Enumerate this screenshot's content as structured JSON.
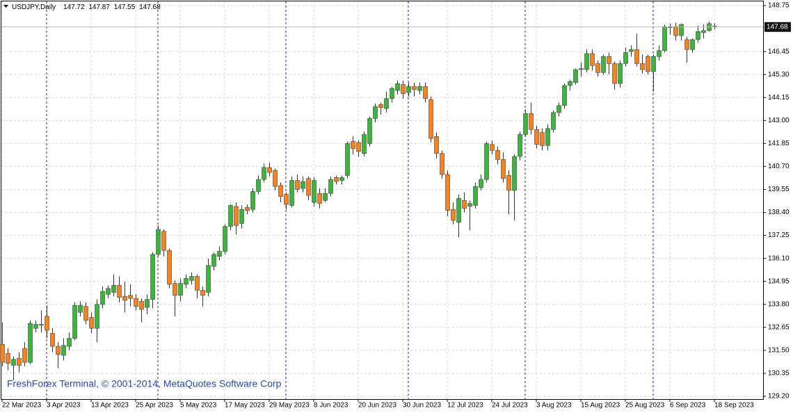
{
  "chart_data": {
    "type": "candlestick",
    "title": "USDJPY,Daily",
    "watermark": "FreshForex Terminal, © 2001-2014, MetaQuotes Software Corp",
    "up_color": "#3cb43c",
    "down_color": "#f5821f",
    "grid": true,
    "ylim": [
      129.06,
      148.96
    ],
    "yticks": [
      148.75,
      {
        "value": 146.45,
        "label": "146.45"
      },
      {
        "value": 145.3,
        "label": "145.30"
      },
      144.15,
      {
        "value": 143,
        "label": "143.00"
      },
      141.85,
      {
        "value": 140.7,
        "label": "140.70"
      },
      139.55,
      {
        "value": 138.4,
        "label": "138.40"
      },
      137.25,
      {
        "value": 136.1,
        "label": "136.10"
      },
      134.95,
      {
        "value": 133.8,
        "label": "133.80"
      },
      132.65,
      {
        "value": 131.5,
        "label": "131.50"
      },
      130.35,
      {
        "value": 129.2,
        "label": "129.20"
      }
    ],
    "categories": [
      "22 Mar 2023",
      null,
      null,
      null,
      null,
      null,
      null,
      null,
      "3 Apr 2023",
      null,
      null,
      null,
      null,
      null,
      null,
      null,
      "13 Apr 2023",
      null,
      null,
      null,
      null,
      null,
      null,
      null,
      "25 Apr 2023",
      null,
      null,
      null,
      null,
      null,
      null,
      null,
      "5 May 2023",
      null,
      null,
      null,
      null,
      null,
      null,
      null,
      "17 May 2023",
      null,
      null,
      null,
      null,
      null,
      null,
      null,
      "29 May 2023",
      null,
      null,
      null,
      null,
      null,
      null,
      null,
      "8 Jun 2023",
      null,
      null,
      null,
      null,
      null,
      null,
      null,
      "20 Jun 2023",
      null,
      null,
      null,
      null,
      null,
      null,
      null,
      "30 Jun 2023",
      null,
      null,
      null,
      null,
      null,
      null,
      null,
      "12 Jul 2023",
      null,
      null,
      null,
      null,
      null,
      null,
      null,
      "24 Jul 2023",
      null,
      null,
      null,
      null,
      null,
      null,
      null,
      "3 Aug 2023",
      null,
      null,
      null,
      null,
      null,
      null,
      null,
      "15 Aug 2023",
      null,
      null,
      null,
      null,
      null,
      null,
      null,
      "25 Aug 2023",
      null,
      null,
      null,
      null,
      null,
      null,
      null,
      "6 Sep 2023",
      null,
      null,
      null,
      null,
      null,
      null,
      null,
      "18 Sep 2023"
    ],
    "open": [
      131.8,
      131.35,
      130.75,
      131.1,
      131.6,
      130.9,
      132.6,
      132.75,
      133.2,
      132.35,
      131.7,
      131.25,
      131.7,
      132.1,
      133.4,
      133.7,
      133.15,
      132.6,
      133.8,
      134.3,
      134.4,
      134.75,
      134.2,
      134.25,
      134.1,
      133.95,
      133.65,
      134.05,
      136.3,
      137.45,
      136.5,
      134.85,
      134.25,
      134.8,
      135.0,
      135.2,
      134.5,
      134.4,
      135.7,
      136.2,
      136.45,
      137.7,
      138.7,
      137.85,
      138.65,
      138.55,
      139.45,
      140.05,
      140.65,
      140.5,
      139.75,
      139.3,
      138.75,
      140.0,
      139.6,
      140.1,
      138.9,
      139.35,
      139.0,
      139.35,
      140.15,
      140.0,
      140.25,
      141.95,
      141.9,
      141.35,
      141.85,
      143.1,
      143.8,
      143.6,
      144.1,
      144.5,
      144.8,
      144.4,
      144.7,
      144.5,
      144.7,
      144.05,
      142.2,
      141.35,
      140.3,
      138.55,
      137.9,
      139.0,
      138.7,
      138.75,
      139.65,
      140.05,
      141.8,
      141.5,
      141.05,
      140.25,
      139.5,
      141.2,
      142.3,
      143.35,
      142.55,
      142.4,
      141.75,
      142.55,
      143.4,
      143.75,
      144.75,
      144.9,
      145.55,
      145.55,
      146.35,
      145.85,
      145.4,
      146.2,
      145.85,
      144.85,
      145.85,
      146.45,
      146.55,
      145.85,
      146.2,
      145.45,
      146.2,
      146.5,
      147.7,
      147.7,
      147.25,
      147.05,
      146.55,
      147.05,
      147.4,
      147.5,
      147.72
    ],
    "high": [
      132.9,
      131.6,
      131.2,
      131.4,
      131.9,
      133.0,
      133.0,
      133.5,
      133.75,
      132.6,
      131.9,
      132.1,
      132.4,
      133.9,
      133.95,
      133.9,
      133.4,
      134.05,
      134.7,
      134.75,
      135.3,
      135.2,
      134.95,
      134.8,
      134.3,
      134.1,
      134.3,
      136.4,
      137.75,
      137.55,
      136.6,
      135.0,
      135.1,
      135.3,
      135.4,
      135.3,
      134.7,
      136.1,
      136.4,
      136.7,
      137.8,
      138.8,
      138.9,
      138.75,
      138.8,
      139.6,
      140.25,
      140.85,
      140.9,
      140.6,
      139.9,
      139.4,
      140.2,
      140.3,
      140.2,
      140.2,
      140.15,
      139.6,
      139.6,
      140.2,
      140.25,
      140.25,
      141.95,
      142.2,
      142.0,
      142.45,
      143.2,
      143.85,
      143.9,
      144.45,
      144.7,
      145.0,
      145.0,
      144.9,
      144.9,
      144.9,
      144.9,
      144.2,
      142.4,
      141.5,
      140.5,
      138.9,
      139.3,
      139.4,
      139.0,
      139.9,
      140.3,
      141.95,
      142.0,
      141.7,
      141.4,
      140.5,
      141.3,
      142.45,
      143.55,
      143.9,
      142.75,
      142.6,
      142.8,
      143.5,
      143.9,
      144.85,
      145.05,
      145.6,
      145.9,
      146.55,
      146.55,
      146.0,
      146.3,
      146.4,
      145.95,
      146.0,
      146.65,
      146.75,
      147.35,
      146.3,
      146.3,
      146.3,
      146.75,
      147.8,
      147.85,
      147.9,
      147.85,
      147.2,
      147.1,
      147.75,
      147.8,
      147.95,
      147.87
    ],
    "low": [
      130.7,
      130.5,
      130.0,
      130.4,
      130.7,
      130.8,
      132.4,
      132.4,
      132.1,
      131.4,
      130.6,
      131.0,
      131.5,
      132.0,
      133.2,
      132.8,
      132.35,
      131.9,
      133.6,
      134.1,
      134.2,
      133.9,
      133.4,
      133.7,
      133.5,
      132.9,
      133.3,
      133.6,
      136.2,
      136.2,
      134.6,
      133.2,
      133.95,
      134.6,
      134.8,
      134.1,
      133.7,
      134.2,
      135.5,
      136.0,
      136.3,
      137.5,
      137.3,
      137.6,
      138.3,
      138.4,
      139.3,
      139.9,
      140.2,
      139.5,
      138.9,
      138.55,
      138.65,
      139.4,
      139.4,
      139.0,
      138.7,
      138.6,
      138.9,
      139.2,
      139.8,
      139.8,
      140.1,
      141.3,
      141.2,
      141.2,
      141.7,
      142.9,
      143.3,
      143.4,
      143.9,
      144.3,
      144.1,
      144.2,
      144.2,
      144.3,
      143.9,
      141.9,
      141.1,
      140.1,
      138.2,
      137.8,
      137.15,
      138.4,
      137.5,
      138.6,
      139.5,
      139.9,
      141.3,
      140.8,
      139.9,
      138.3,
      138.0,
      141.0,
      142.2,
      142.3,
      141.6,
      141.5,
      141.5,
      142.4,
      143.2,
      143.6,
      144.5,
      144.8,
      145.2,
      145.4,
      145.5,
      145.2,
      145.3,
      145.3,
      144.55,
      144.65,
      145.7,
      146.2,
      145.7,
      145.35,
      145.3,
      144.45,
      146.0,
      146.4,
      147.3,
      147.0,
      147.0,
      145.9,
      146.4,
      146.9,
      147.1,
      147.45,
      147.55
    ],
    "close": [
      130.9,
      130.85,
      131.05,
      130.75,
      130.9,
      132.85,
      132.8,
      132.8,
      132.5,
      131.7,
      131.3,
      131.75,
      132.1,
      133.75,
      133.75,
      133.0,
      132.6,
      133.8,
      134.45,
      134.6,
      134.75,
      134.15,
      134.0,
      134.1,
      133.7,
      133.55,
      134.05,
      136.3,
      137.55,
      136.5,
      134.8,
      134.25,
      134.85,
      135.1,
      135.2,
      134.5,
      134.25,
      135.75,
      136.3,
      136.45,
      137.7,
      138.75,
      137.75,
      138.55,
      138.5,
      139.45,
      140.05,
      140.65,
      140.4,
      139.7,
      139.2,
      138.8,
      140.0,
      139.55,
      139.95,
      139.25,
      140.0,
      138.85,
      139.35,
      140.05,
      139.95,
      140.15,
      141.85,
      141.6,
      141.45,
      142.3,
      143.1,
      143.7,
      143.65,
      144.1,
      144.6,
      144.85,
      144.35,
      144.7,
      144.55,
      144.7,
      144.1,
      142.1,
      141.35,
      140.3,
      138.5,
      138.0,
      139.1,
      138.6,
      138.85,
      139.7,
      140.05,
      141.85,
      141.5,
      141.05,
      140.1,
      139.5,
      141.2,
      142.3,
      143.35,
      142.55,
      141.8,
      141.75,
      142.6,
      143.4,
      143.75,
      144.75,
      144.95,
      145.55,
      145.6,
      146.35,
      145.75,
      145.4,
      146.2,
      145.85,
      144.85,
      145.85,
      146.4,
      146.55,
      145.85,
      145.55,
      145.45,
      146.2,
      146.5,
      147.7,
      147.65,
      147.25,
      147.8,
      146.55,
      147.05,
      147.45,
      147.5,
      147.85,
      147.68
    ]
  }
}
